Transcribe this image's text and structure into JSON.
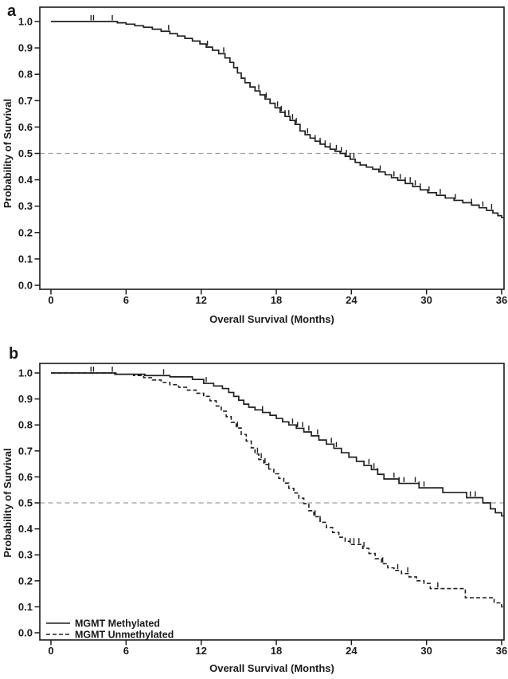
{
  "figure": {
    "background_color": "#ffffff",
    "text_color": "#1a1a1a",
    "curve_color": "#1f1f1f",
    "reference_line_color": "#9e9e9e",
    "panel_labels": [
      "a",
      "b"
    ]
  },
  "chart_data": [
    {
      "type": "line",
      "subtype": "kaplan_meier_step_curve",
      "panel_label": "a",
      "title": "",
      "xlabel": "Overall Survival (Months)",
      "ylabel": "Probability of Survival",
      "xlim": [
        0,
        36
      ],
      "ylim": [
        0.0,
        1.0
      ],
      "xticks": [
        0,
        6,
        12,
        18,
        24,
        30,
        36
      ],
      "xtick_labels": [
        "0",
        "6",
        "12",
        "18",
        "24",
        "30",
        "36"
      ],
      "yticks": [
        0.0,
        0.1,
        0.2,
        0.3,
        0.4,
        0.5,
        0.6,
        0.7,
        0.8,
        0.9,
        1.0
      ],
      "ytick_labels": [
        "0.0",
        "0.1",
        "0.2",
        "0.3",
        "0.4",
        "0.5",
        "0.6",
        "0.7",
        "0.8",
        "0.9",
        "1.0"
      ],
      "grid": false,
      "reference_line_y": 0.5,
      "reference_line_style": "dashed",
      "legend": null,
      "series": [
        {
          "name": "",
          "line_style": "solid",
          "points": [
            [
              0,
              1.0
            ],
            [
              4.7,
              1.0
            ],
            [
              5.3,
              0.995
            ],
            [
              6.0,
              0.99
            ],
            [
              6.7,
              0.984
            ],
            [
              7.4,
              0.978
            ],
            [
              8.1,
              0.971
            ],
            [
              8.8,
              0.963
            ],
            [
              9.5,
              0.954
            ],
            [
              10.1,
              0.945
            ],
            [
              10.7,
              0.936
            ],
            [
              11.3,
              0.926
            ],
            [
              11.9,
              0.915
            ],
            [
              12.4,
              0.903
            ],
            [
              12.9,
              0.891
            ],
            [
              13.4,
              0.878
            ],
            [
              13.9,
              0.862
            ],
            [
              14.3,
              0.845
            ],
            [
              14.6,
              0.825
            ],
            [
              14.9,
              0.805
            ],
            [
              15.2,
              0.785
            ],
            [
              15.5,
              0.768
            ],
            [
              15.9,
              0.752
            ],
            [
              16.3,
              0.737
            ],
            [
              16.7,
              0.722
            ],
            [
              17.1,
              0.706
            ],
            [
              17.5,
              0.69
            ],
            [
              17.9,
              0.673
            ],
            [
              18.3,
              0.656
            ],
            [
              18.7,
              0.64
            ],
            [
              19.1,
              0.625
            ],
            [
              19.5,
              0.61
            ],
            [
              19.9,
              0.585
            ],
            [
              20.3,
              0.571
            ],
            [
              20.7,
              0.558
            ],
            [
              21.1,
              0.546
            ],
            [
              21.5,
              0.535
            ],
            [
              21.9,
              0.525
            ],
            [
              22.3,
              0.516
            ],
            [
              22.7,
              0.508
            ],
            [
              23.1,
              0.5
            ],
            [
              23.5,
              0.489
            ],
            [
              23.9,
              0.478
            ],
            [
              24.3,
              0.466
            ],
            [
              24.7,
              0.456
            ],
            [
              25.2,
              0.448
            ],
            [
              25.7,
              0.44
            ],
            [
              26.2,
              0.43
            ],
            [
              26.7,
              0.419
            ],
            [
              27.2,
              0.408
            ],
            [
              27.7,
              0.398
            ],
            [
              28.3,
              0.386
            ],
            [
              28.9,
              0.374
            ],
            [
              29.5,
              0.362
            ],
            [
              30.1,
              0.351
            ],
            [
              30.8,
              0.341
            ],
            [
              31.5,
              0.331
            ],
            [
              32.2,
              0.322
            ],
            [
              32.9,
              0.313
            ],
            [
              33.6,
              0.304
            ],
            [
              34.2,
              0.294
            ],
            [
              34.8,
              0.284
            ],
            [
              35.3,
              0.274
            ],
            [
              35.7,
              0.264
            ],
            [
              36,
              0.257
            ]
          ],
          "censor_times": [
            3.2,
            3.4,
            4.9,
            9.4,
            12.5,
            13.8,
            14.9,
            16.6,
            17.2,
            18.1,
            18.4,
            18.7,
            19.0,
            19.3,
            19.6,
            20.5,
            21.1,
            21.5,
            21.9,
            22.3,
            22.8,
            23.2,
            23.6,
            23.9,
            24.2,
            26.3,
            27.4,
            27.9,
            28.3,
            28.7,
            29.1,
            29.5,
            30.2,
            31.1,
            32.3,
            33.6,
            34.5,
            35.2
          ]
        }
      ]
    },
    {
      "type": "line",
      "subtype": "kaplan_meier_step_curve",
      "panel_label": "b",
      "title": "",
      "xlabel": "Overall Survival (Months)",
      "ylabel": "Probability of Survival",
      "xlim": [
        0,
        36
      ],
      "ylim": [
        0.0,
        1.0
      ],
      "xticks": [
        0,
        6,
        12,
        18,
        24,
        30,
        36
      ],
      "xtick_labels": [
        "0",
        "6",
        "12",
        "18",
        "24",
        "30",
        "36"
      ],
      "yticks": [
        0.0,
        0.1,
        0.2,
        0.3,
        0.4,
        0.5,
        0.6,
        0.7,
        0.8,
        0.9,
        1.0
      ],
      "ytick_labels": [
        "0.0",
        "0.1",
        "0.2",
        "0.3",
        "0.4",
        "0.5",
        "0.6",
        "0.7",
        "0.8",
        "0.9",
        "1.0"
      ],
      "grid": false,
      "reference_line_y": 0.5,
      "reference_line_style": "dashed",
      "legend": {
        "position": "bottom-left",
        "entries": [
          {
            "label": "MGMT Methylated",
            "line_style": "solid"
          },
          {
            "label": "MGMT Unmethylated",
            "line_style": "dashed"
          }
        ]
      },
      "series": [
        {
          "name": "MGMT Methylated",
          "line_style": "solid",
          "points": [
            [
              0,
              1.0
            ],
            [
              4.7,
              1.0
            ],
            [
              5.1,
              0.995
            ],
            [
              7.5,
              0.99
            ],
            [
              9.5,
              0.985
            ],
            [
              11.3,
              0.975
            ],
            [
              12.2,
              0.96
            ],
            [
              13.0,
              0.95
            ],
            [
              13.7,
              0.94
            ],
            [
              14.2,
              0.925
            ],
            [
              14.6,
              0.91
            ],
            [
              15.0,
              0.895
            ],
            [
              15.4,
              0.88
            ],
            [
              15.8,
              0.868
            ],
            [
              16.3,
              0.858
            ],
            [
              16.9,
              0.848
            ],
            [
              17.5,
              0.837
            ],
            [
              18.0,
              0.825
            ],
            [
              18.5,
              0.812
            ],
            [
              19.0,
              0.8
            ],
            [
              19.6,
              0.787
            ],
            [
              20.2,
              0.773
            ],
            [
              20.8,
              0.758
            ],
            [
              21.4,
              0.742
            ],
            [
              22.0,
              0.726
            ],
            [
              22.6,
              0.71
            ],
            [
              23.2,
              0.693
            ],
            [
              23.8,
              0.676
            ],
            [
              24.4,
              0.66
            ],
            [
              25.0,
              0.644
            ],
            [
              25.6,
              0.628
            ],
            [
              26.1,
              0.61
            ],
            [
              26.6,
              0.592
            ],
            [
              27.8,
              0.575
            ],
            [
              29.4,
              0.558
            ],
            [
              31.3,
              0.54
            ],
            [
              33.2,
              0.52
            ],
            [
              34.5,
              0.5
            ],
            [
              35.1,
              0.477
            ],
            [
              35.5,
              0.462
            ],
            [
              36,
              0.45
            ]
          ],
          "censor_times": [
            3.2,
            3.4,
            9.0,
            12.4,
            16.9,
            19.3,
            19.7,
            20.1,
            20.6,
            21.3,
            22.4,
            22.8,
            25.4,
            25.8,
            26.1,
            27.4,
            27.8,
            28.2,
            29.1,
            29.4,
            29.8,
            33.5,
            33.9
          ]
        },
        {
          "name": "MGMT Unmethylated",
          "line_style": "dashed",
          "points": [
            [
              0,
              1.0
            ],
            [
              4.7,
              1.0
            ],
            [
              5.2,
              0.995
            ],
            [
              6.6,
              0.99
            ],
            [
              7.4,
              0.982
            ],
            [
              8.1,
              0.973
            ],
            [
              8.8,
              0.964
            ],
            [
              9.5,
              0.955
            ],
            [
              10.2,
              0.945
            ],
            [
              10.9,
              0.934
            ],
            [
              11.6,
              0.922
            ],
            [
              12.2,
              0.91
            ],
            [
              12.7,
              0.893
            ],
            [
              13.2,
              0.873
            ],
            [
              13.6,
              0.853
            ],
            [
              14.0,
              0.832
            ],
            [
              14.4,
              0.81
            ],
            [
              14.8,
              0.788
            ],
            [
              15.2,
              0.763
            ],
            [
              15.6,
              0.738
            ],
            [
              16.0,
              0.712
            ],
            [
              16.3,
              0.688
            ],
            [
              16.6,
              0.667
            ],
            [
              17.0,
              0.648
            ],
            [
              17.4,
              0.63
            ],
            [
              17.8,
              0.612
            ],
            [
              18.2,
              0.594
            ],
            [
              18.6,
              0.576
            ],
            [
              19.0,
              0.556
            ],
            [
              19.4,
              0.538
            ],
            [
              19.8,
              0.518
            ],
            [
              20.2,
              0.497
            ],
            [
              20.6,
              0.47
            ],
            [
              21.0,
              0.447
            ],
            [
              21.5,
              0.425
            ],
            [
              22.0,
              0.405
            ],
            [
              22.5,
              0.386
            ],
            [
              23.0,
              0.368
            ],
            [
              23.5,
              0.352
            ],
            [
              23.9,
              0.34
            ],
            [
              24.9,
              0.325
            ],
            [
              25.4,
              0.305
            ],
            [
              25.9,
              0.285
            ],
            [
              26.4,
              0.266
            ],
            [
              26.9,
              0.25
            ],
            [
              27.4,
              0.24
            ],
            [
              28.0,
              0.228
            ],
            [
              28.6,
              0.215
            ],
            [
              29.2,
              0.2
            ],
            [
              29.8,
              0.19
            ],
            [
              30.3,
              0.17
            ],
            [
              33.1,
              0.135
            ],
            [
              35.4,
              0.115
            ],
            [
              36,
              0.1
            ]
          ],
          "censor_times": [
            4.9,
            14.9,
            16.5,
            16.8,
            17.1,
            17.4,
            21.1,
            21.5,
            23.9,
            24.2,
            24.6,
            25.0,
            26.5,
            27.7,
            28.5,
            30.9
          ]
        }
      ]
    }
  ]
}
